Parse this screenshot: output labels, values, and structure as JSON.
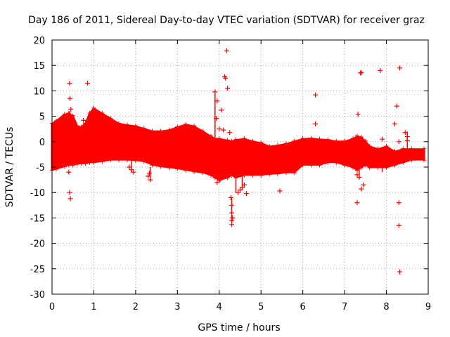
{
  "chart_data": {
    "type": "scatter",
    "title": "Day 186 of 2011, Sidereal Day-to-day VTEC variation (SDTVAR) for receiver graz",
    "xlabel": "GPS time / hours",
    "ylabel": "SDTVAR / TECUs",
    "xlim": [
      0,
      9
    ],
    "ylim": [
      -30,
      20
    ],
    "xticks": [
      0,
      1,
      2,
      3,
      4,
      5,
      6,
      7,
      8,
      9
    ],
    "yticks": [
      -30,
      -25,
      -20,
      -15,
      -10,
      -5,
      0,
      5,
      10,
      15,
      20
    ],
    "grid": true,
    "marker": "+",
    "color": "#ff0000",
    "band": {
      "x": [
        0.0,
        0.1,
        0.3,
        0.4,
        0.5,
        0.6,
        0.7,
        0.8,
        0.9,
        1.0,
        1.2,
        1.4,
        1.6,
        1.8,
        2.0,
        2.2,
        2.4,
        2.6,
        2.8,
        3.0,
        3.2,
        3.4,
        3.6,
        3.8,
        3.9,
        4.0,
        4.2,
        4.3,
        4.4,
        4.6,
        4.8,
        5.0,
        5.2,
        5.4,
        5.6,
        5.8,
        6.0,
        6.2,
        6.4,
        6.6,
        6.8,
        7.0,
        7.2,
        7.3,
        7.4,
        7.5,
        7.6,
        7.8,
        8.0,
        8.2,
        8.4,
        8.6,
        8.9
      ],
      "upper": [
        3.5,
        4.0,
        5.3,
        5.5,
        5.0,
        3.0,
        2.8,
        3.5,
        5.5,
        6.5,
        5.5,
        4.5,
        3.5,
        3.2,
        3.0,
        2.5,
        2.0,
        2.0,
        2.2,
        2.8,
        3.3,
        3.0,
        2.0,
        1.0,
        0.5,
        0.5,
        0.2,
        0.0,
        0.3,
        0.5,
        0.0,
        -0.3,
        -1.0,
        -0.8,
        -0.5,
        0.0,
        0.5,
        0.6,
        0.4,
        0.3,
        0.0,
        0.0,
        0.5,
        1.0,
        0.8,
        0.0,
        -1.0,
        -1.5,
        -1.0,
        -2.0,
        -1.5,
        -1.5,
        -1.5
      ],
      "lower": [
        -5.5,
        -5.3,
        -4.8,
        -4.5,
        -4.5,
        -4.3,
        -4.2,
        -4.2,
        -4.0,
        -4.0,
        -3.8,
        -3.5,
        -3.5,
        -3.5,
        -3.6,
        -3.8,
        -4.5,
        -4.8,
        -5.0,
        -5.2,
        -5.5,
        -5.8,
        -6.0,
        -6.5,
        -7.0,
        -7.5,
        -7.0,
        -6.5,
        -7.0,
        -6.5,
        -6.5,
        -6.5,
        -6.3,
        -6.2,
        -6.0,
        -6.0,
        -4.5,
        -4.5,
        -4.5,
        -4.0,
        -4.0,
        -4.5,
        -5.0,
        -5.5,
        -5.0,
        -4.5,
        -5.0,
        -5.0,
        -5.0,
        -4.5,
        -4.0,
        -3.5,
        -3.5
      ]
    },
    "outliers": [
      {
        "x": 0.42,
        "y": 11.5
      },
      {
        "x": 0.43,
        "y": 8.5
      },
      {
        "x": 0.45,
        "y": 6.4
      },
      {
        "x": 0.42,
        "y": -10.0
      },
      {
        "x": 0.44,
        "y": -11.2
      },
      {
        "x": 0.4,
        "y": -6.0
      },
      {
        "x": 0.85,
        "y": 11.5
      },
      {
        "x": 0.75,
        "y": 4.2
      },
      {
        "x": 0.8,
        "y": 3.5
      },
      {
        "x": 1.9,
        "y": -5.5
      },
      {
        "x": 1.95,
        "y": -6.0
      },
      {
        "x": 1.85,
        "y": -5.0
      },
      {
        "x": 2.3,
        "y": -6.8
      },
      {
        "x": 2.35,
        "y": -7.5
      },
      {
        "x": 2.33,
        "y": -6.2
      },
      {
        "x": 3.9,
        "y": 9.8
      },
      {
        "x": 3.95,
        "y": 8.0
      },
      {
        "x": 4.05,
        "y": 6.2
      },
      {
        "x": 3.93,
        "y": 4.6
      },
      {
        "x": 4.0,
        "y": 2.5
      },
      {
        "x": 4.1,
        "y": 2.3
      },
      {
        "x": 3.95,
        "y": -8.0
      },
      {
        "x": 4.02,
        "y": -7.5
      },
      {
        "x": 4.13,
        "y": 12.8
      },
      {
        "x": 4.15,
        "y": 12.5
      },
      {
        "x": 4.2,
        "y": 10.5
      },
      {
        "x": 4.18,
        "y": 17.9
      },
      {
        "x": 4.25,
        "y": 1.8
      },
      {
        "x": 4.28,
        "y": -11.0
      },
      {
        "x": 4.3,
        "y": -12.5
      },
      {
        "x": 4.3,
        "y": -14.0
      },
      {
        "x": 4.3,
        "y": -15.5
      },
      {
        "x": 4.3,
        "y": -16.3
      },
      {
        "x": 4.32,
        "y": -15.0
      },
      {
        "x": 4.45,
        "y": -10.0
      },
      {
        "x": 4.5,
        "y": -9.5
      },
      {
        "x": 4.55,
        "y": -9.0
      },
      {
        "x": 4.65,
        "y": -10.2
      },
      {
        "x": 4.6,
        "y": -8.5
      },
      {
        "x": 5.45,
        "y": -9.7
      },
      {
        "x": 6.3,
        "y": 9.2
      },
      {
        "x": 6.3,
        "y": 3.5
      },
      {
        "x": 7.32,
        "y": 5.4
      },
      {
        "x": 7.38,
        "y": 13.5
      },
      {
        "x": 7.4,
        "y": 13.6
      },
      {
        "x": 7.3,
        "y": -12.0
      },
      {
        "x": 7.4,
        "y": -9.3
      },
      {
        "x": 7.45,
        "y": -8.5
      },
      {
        "x": 7.35,
        "y": -7.0
      },
      {
        "x": 7.3,
        "y": -6.5
      },
      {
        "x": 7.85,
        "y": 14.0
      },
      {
        "x": 7.9,
        "y": 0.5
      },
      {
        "x": 8.25,
        "y": 7.0
      },
      {
        "x": 8.2,
        "y": 3.5
      },
      {
        "x": 8.3,
        "y": 0.0
      },
      {
        "x": 8.32,
        "y": 14.5
      },
      {
        "x": 8.3,
        "y": -12.0
      },
      {
        "x": 8.3,
        "y": -16.5
      },
      {
        "x": 8.32,
        "y": -25.6
      },
      {
        "x": 8.45,
        "y": 1.8
      },
      {
        "x": 8.5,
        "y": 1.0
      },
      {
        "x": 8.5,
        "y": 0.2
      }
    ],
    "spikes": [
      {
        "x": 3.9,
        "y0": 0.0,
        "y1": 9.5
      },
      {
        "x": 4.3,
        "y0": -16.0,
        "y1": -11.0
      },
      {
        "x": 4.4,
        "y0": -10.0,
        "y1": -6.0
      },
      {
        "x": 4.55,
        "y0": -9.5,
        "y1": -6.0
      },
      {
        "x": 0.42,
        "y0": -4.0,
        "y1": 6.0
      },
      {
        "x": 1.9,
        "y0": -6.0,
        "y1": -3.5
      },
      {
        "x": 2.35,
        "y0": -7.5,
        "y1": -5.0
      },
      {
        "x": 7.35,
        "y0": -7.0,
        "y1": -4.5
      },
      {
        "x": 7.9,
        "y0": -6.0,
        "y1": -4.0
      },
      {
        "x": 8.5,
        "y0": -4.0,
        "y1": 2.0
      }
    ]
  }
}
